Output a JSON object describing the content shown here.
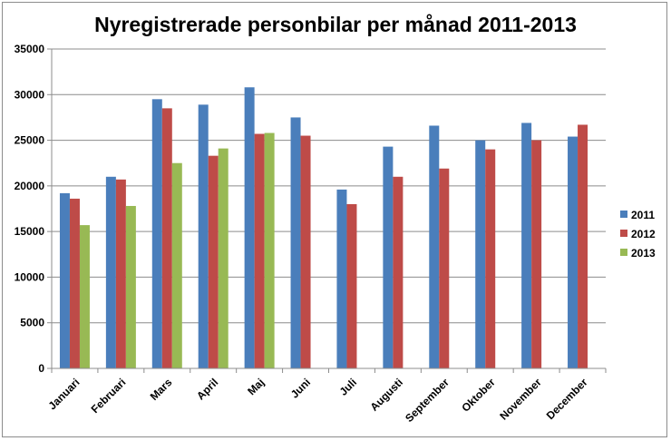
{
  "chart_data": {
    "type": "bar",
    "title": "Nyregistrerade personbilar per månad 2011-2013",
    "xlabel": "",
    "ylabel": "",
    "ylim": [
      0,
      35000
    ],
    "yticks": [
      0,
      5000,
      10000,
      15000,
      20000,
      25000,
      30000,
      35000
    ],
    "ytick_labels": [
      "0",
      "5000",
      "10000",
      "15000",
      "20000",
      "25000",
      "30000",
      "35000"
    ],
    "grid": true,
    "legend_position": "right",
    "categories": [
      "Januari",
      "Februari",
      "Mars",
      "April",
      "Maj",
      "Juni",
      "Juli",
      "Augusti",
      "September",
      "Oktober",
      "November",
      "December"
    ],
    "series": [
      {
        "name": "2011",
        "color": "#4a7ebb",
        "values": [
          19200,
          21000,
          29500,
          28900,
          30800,
          27500,
          19600,
          24300,
          26600,
          25000,
          26900,
          25400
        ]
      },
      {
        "name": "2012",
        "color": "#be4b48",
        "values": [
          18600,
          20700,
          28500,
          23300,
          25700,
          25500,
          18000,
          21000,
          21900,
          24000,
          25000,
          26700
        ]
      },
      {
        "name": "2013",
        "color": "#98b954",
        "values": [
          15700,
          17800,
          22500,
          24100,
          25800,
          null,
          null,
          null,
          null,
          null,
          null,
          null
        ]
      }
    ]
  }
}
